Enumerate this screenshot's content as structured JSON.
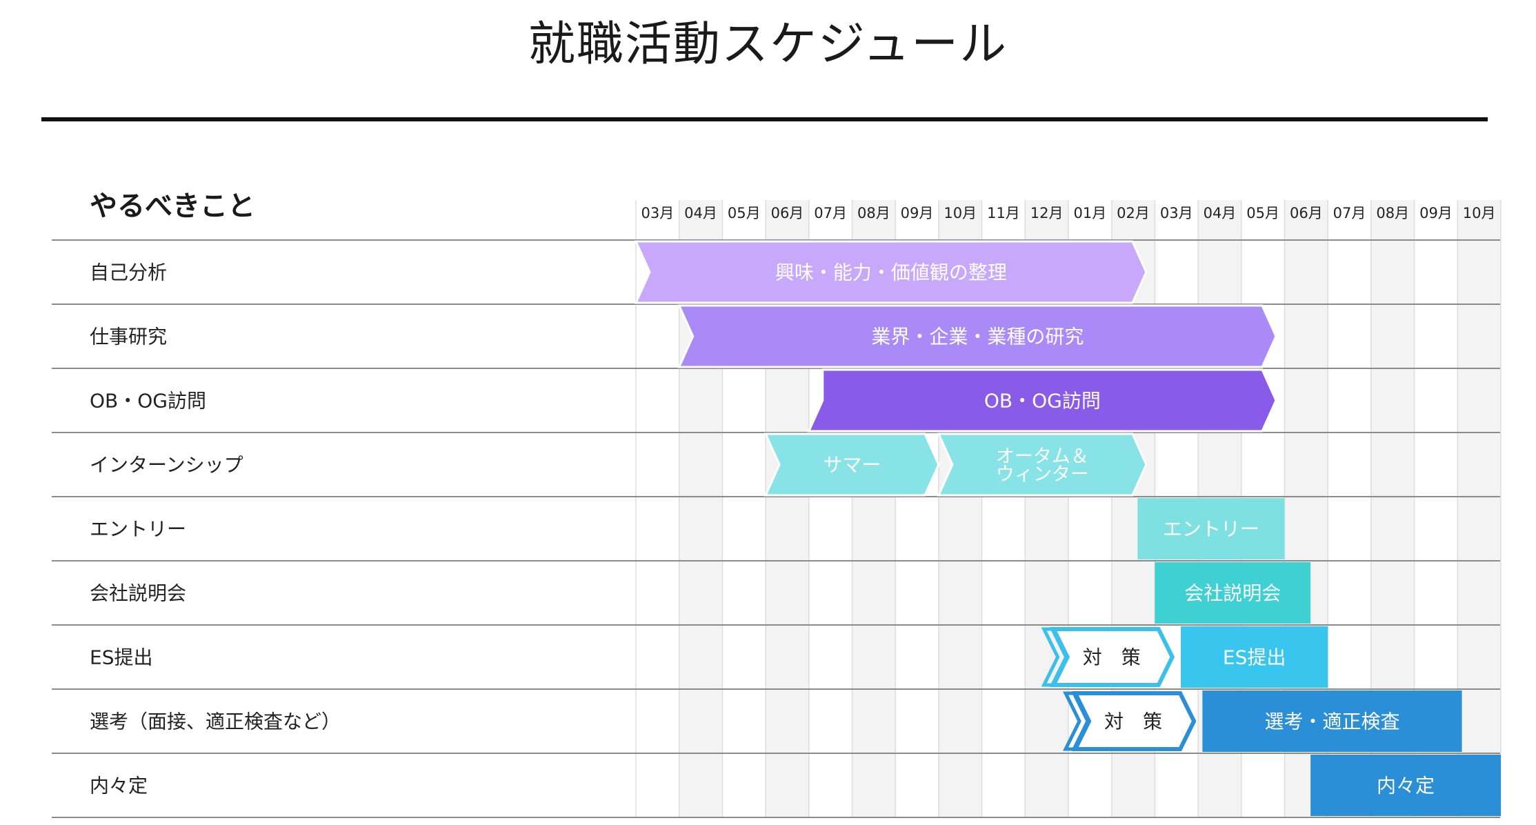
{
  "title": "就職活動スケジュール",
  "chart_data": {
    "type": "gantt",
    "header_label": "やるべきこと",
    "months": [
      "03月",
      "04月",
      "05月",
      "06月",
      "07月",
      "08月",
      "09月",
      "10月",
      "11月",
      "12月",
      "01月",
      "02月",
      "03月",
      "04月",
      "05月",
      "06月",
      "07月",
      "08月",
      "09月",
      "10月"
    ],
    "tasks": [
      "自己分析",
      "仕事研究",
      "OB・OG訪問",
      "インターンシップ",
      "エントリー",
      "会社説明会",
      "ES提出",
      "選考（面接、適正検査など）",
      "内々定"
    ],
    "bars": [
      {
        "task": 0,
        "label": "興味・能力・価値観の整理",
        "start": 0,
        "end": 11.8,
        "shape": "chevron",
        "color": "#c8a8fb",
        "text_color": "#ffffff"
      },
      {
        "task": 1,
        "label": "業界・企業・業種の研究",
        "start": 1,
        "end": 14.8,
        "shape": "chevron",
        "color": "#a98af7",
        "text_color": "#ffffff"
      },
      {
        "task": 2,
        "label": "OB・OG訪問",
        "start": 4,
        "end": 14.8,
        "shape": "chevron-in",
        "color": "#8a5be8",
        "text_color": "#ffffff"
      },
      {
        "task": 3,
        "label": "サマー",
        "start": 3,
        "end": 7.0,
        "shape": "chevron",
        "color": "#87e3e6",
        "text_color": "#ffffff"
      },
      {
        "task": 3,
        "label": "オータム＆\nウィンター",
        "start": 7.0,
        "end": 11.8,
        "shape": "chevron",
        "color": "#87e3e6",
        "text_color": "#ffffff"
      },
      {
        "task": 4,
        "label": "エントリー",
        "start": 11.6,
        "end": 15.0,
        "shape": "rect",
        "color": "#7fe0e2",
        "text_color": "#ffffff"
      },
      {
        "task": 5,
        "label": "会社説明会",
        "start": 12.0,
        "end": 15.6,
        "shape": "rect",
        "color": "#3ed0d3",
        "text_color": "#ffffff"
      },
      {
        "task": 6,
        "label": "対　策",
        "start": 9.5,
        "end": 12.5,
        "shape": "outline-chevron",
        "color": "#3cc0ea",
        "text_color": "#222222"
      },
      {
        "task": 6,
        "label": "ES提出",
        "start": 12.6,
        "end": 16.0,
        "shape": "rect",
        "color": "#38c6ee",
        "text_color": "#ffffff"
      },
      {
        "task": 7,
        "label": "対　策",
        "start": 10.0,
        "end": 13.0,
        "shape": "outline-chevron",
        "color": "#2a8fd6",
        "text_color": "#222222"
      },
      {
        "task": 7,
        "label": "選考・適正検査",
        "start": 13.1,
        "end": 19.1,
        "shape": "rect",
        "color": "#2a8fd6",
        "text_color": "#ffffff"
      },
      {
        "task": 8,
        "label": "内々定",
        "start": 15.6,
        "end": 20.0,
        "shape": "rect",
        "color": "#2a8fd6",
        "text_color": "#ffffff"
      }
    ]
  }
}
